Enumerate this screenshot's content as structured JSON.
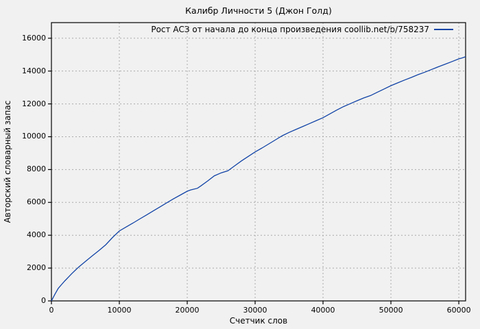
{
  "chart_data": {
    "type": "line",
    "title": "Калибр Личности 5 (Джон Голд)",
    "xlabel": "Счетчик слов",
    "ylabel": "Авторский словарный запас",
    "xlim": [
      0,
      61000
    ],
    "ylim": [
      0,
      16950
    ],
    "xticks": [
      0,
      10000,
      20000,
      30000,
      40000,
      50000,
      60000
    ],
    "yticks": [
      0,
      2000,
      4000,
      6000,
      8000,
      10000,
      12000,
      14000,
      16000
    ],
    "grid": true,
    "legend_position": "top-right-inside",
    "colors": {
      "background": "#f1f1f1",
      "grid": "#aaaaaa",
      "axis": "#000000",
      "series": "#1143a6"
    },
    "series": [
      {
        "name": "Рост АСЗ от начала до конца произведения coollib.net/b/758237",
        "color": "#1143a6",
        "points": [
          [
            0,
            0
          ],
          [
            500,
            400
          ],
          [
            1000,
            760
          ],
          [
            1500,
            1000
          ],
          [
            2000,
            1230
          ],
          [
            2500,
            1450
          ],
          [
            3000,
            1660
          ],
          [
            3500,
            1860
          ],
          [
            4000,
            2060
          ],
          [
            5000,
            2400
          ],
          [
            6000,
            2740
          ],
          [
            7000,
            3070
          ],
          [
            8000,
            3420
          ],
          [
            9000,
            3860
          ],
          [
            10000,
            4260
          ],
          [
            11000,
            4500
          ],
          [
            12000,
            4740
          ],
          [
            13000,
            4990
          ],
          [
            14000,
            5230
          ],
          [
            15000,
            5480
          ],
          [
            16000,
            5730
          ],
          [
            17000,
            5980
          ],
          [
            18000,
            6220
          ],
          [
            19000,
            6450
          ],
          [
            20000,
            6680
          ],
          [
            20500,
            6760
          ],
          [
            21500,
            6860
          ],
          [
            22000,
            7000
          ],
          [
            23000,
            7300
          ],
          [
            24000,
            7620
          ],
          [
            25000,
            7800
          ],
          [
            26000,
            7930
          ],
          [
            27000,
            8230
          ],
          [
            28000,
            8530
          ],
          [
            29000,
            8800
          ],
          [
            30000,
            9070
          ],
          [
            31000,
            9310
          ],
          [
            32000,
            9560
          ],
          [
            33000,
            9810
          ],
          [
            34000,
            10060
          ],
          [
            35000,
            10260
          ],
          [
            36000,
            10440
          ],
          [
            37000,
            10620
          ],
          [
            38000,
            10800
          ],
          [
            39000,
            10980
          ],
          [
            40000,
            11160
          ],
          [
            41000,
            11390
          ],
          [
            42000,
            11620
          ],
          [
            43000,
            11830
          ],
          [
            44000,
            12010
          ],
          [
            45000,
            12190
          ],
          [
            46000,
            12360
          ],
          [
            47000,
            12510
          ],
          [
            48000,
            12710
          ],
          [
            49000,
            12910
          ],
          [
            50000,
            13110
          ],
          [
            51000,
            13280
          ],
          [
            52000,
            13450
          ],
          [
            53000,
            13610
          ],
          [
            54000,
            13780
          ],
          [
            55000,
            13930
          ],
          [
            56000,
            14100
          ],
          [
            57000,
            14260
          ],
          [
            58000,
            14420
          ],
          [
            59000,
            14580
          ],
          [
            60000,
            14740
          ],
          [
            60500,
            14800
          ],
          [
            61000,
            14870
          ]
        ]
      }
    ]
  }
}
